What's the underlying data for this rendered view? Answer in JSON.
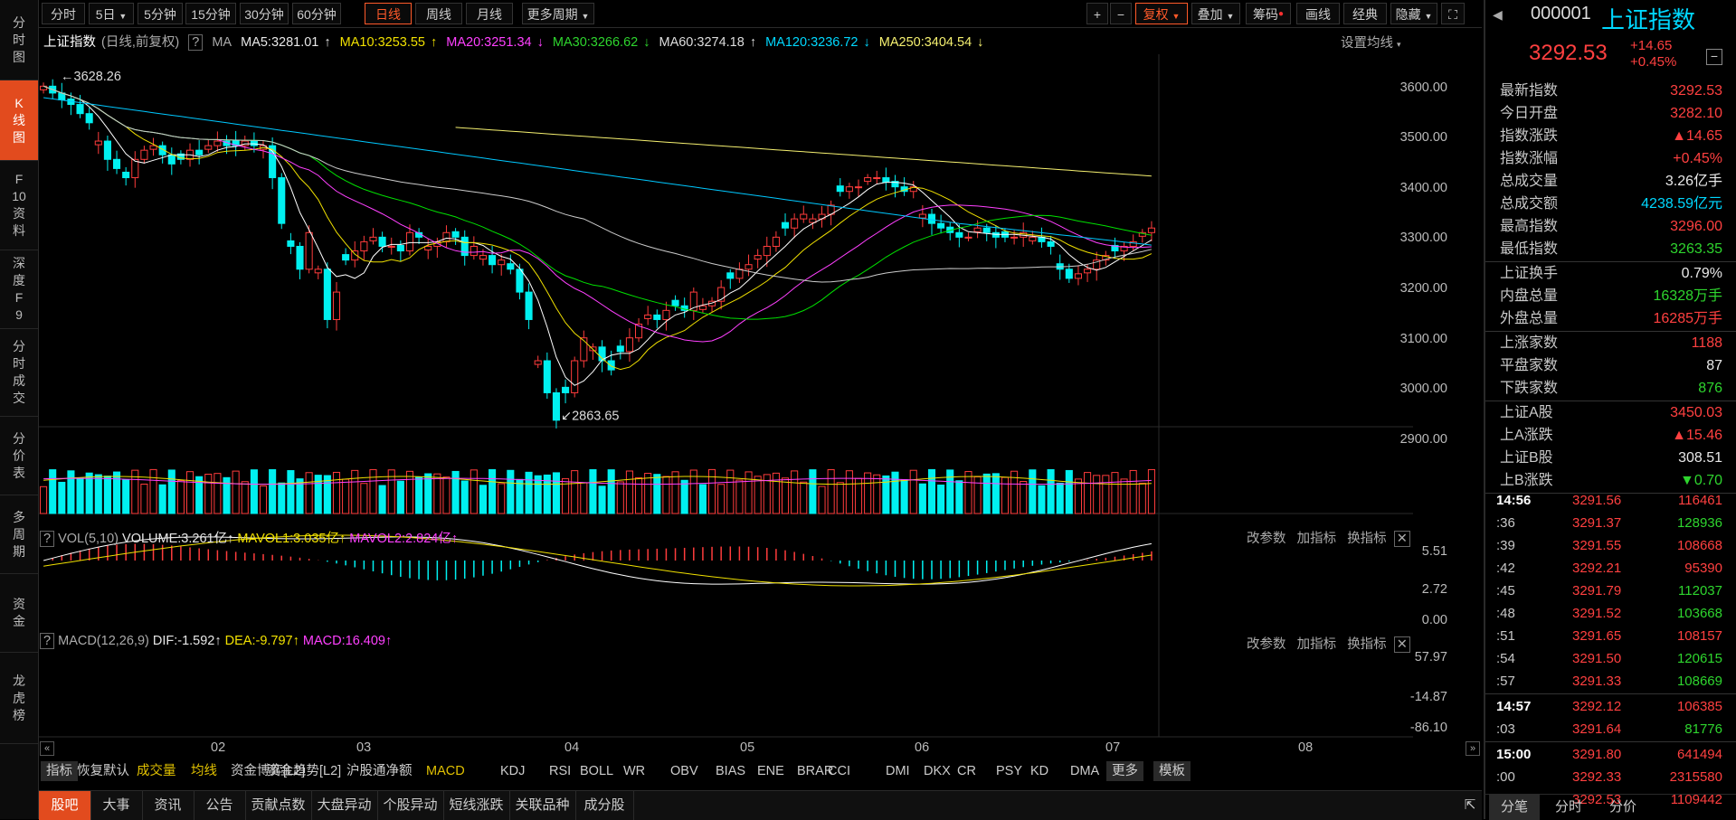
{
  "left_nav": [
    {
      "label": "分时图"
    },
    {
      "label": "K线图",
      "active": true
    },
    {
      "label": "F10资料"
    },
    {
      "label": "深度F9"
    },
    {
      "label": "分时成交"
    },
    {
      "label": "分价表"
    },
    {
      "label": "多周期"
    },
    {
      "label": "资金"
    },
    {
      "label": "龙虎榜"
    }
  ],
  "toolbar": {
    "periods": [
      "分时",
      "5日",
      "5分钟",
      "15分钟",
      "30分钟",
      "60分钟",
      "日线",
      "周线",
      "月线",
      "更多周期"
    ],
    "active_period": "日线",
    "right_buttons": [
      "+",
      "−",
      "复权",
      "叠加",
      "筹码",
      "画线",
      "经典",
      "隐藏"
    ]
  },
  "ma_header": {
    "name": "上证指数",
    "mode": "(日线,前复权)",
    "ma": "MA",
    "ma5": "MA5:3281.01",
    "ma10": "MA10:3253.55",
    "ma20": "MA20:3251.34",
    "ma30": "MA30:3266.62",
    "ma60": "MA60:3274.18",
    "ma120": "MA120:3236.72",
    "ma250": "MA250:3404.54",
    "settings": "设置均线"
  },
  "price_axis": [
    "3600.00",
    "3500.00",
    "3400.00",
    "3300.00",
    "3200.00",
    "3100.00",
    "3000.00",
    "2900.00"
  ],
  "annotations": {
    "high": "3628.26",
    "low": "2863.65"
  },
  "vol_panel": {
    "title": "VOL(5,10)",
    "volume": "VOLUME:3.261亿",
    "mavol1": "MAVOL1:3.035亿",
    "mavol2": "MAVOL2:2.824亿",
    "axis": [
      "5.51",
      "2.72",
      "0.00"
    ],
    "buttons": [
      "改参数",
      "加指标",
      "换指标"
    ]
  },
  "macd_panel": {
    "title": "MACD(12,26,9)",
    "dif": "DIF:-1.592",
    "dea": "DEA:-9.797",
    "macd": "MACD:16.409",
    "axis": [
      "57.97",
      "-14.87",
      "-86.10"
    ],
    "buttons": [
      "改参数",
      "加指标",
      "换指标"
    ]
  },
  "x_axis": [
    "02",
    "03",
    "04",
    "05",
    "06",
    "07",
    "08"
  ],
  "indicator_tabs": [
    "指标",
    "恢复默认",
    "成交量",
    "均线",
    "资金博弈[L2]",
    "资金趋势[L2]",
    "沪股通净额",
    "MACD",
    "KDJ",
    "RSI",
    "BOLL",
    "WR",
    "OBV",
    "BIAS",
    "ENE",
    "BRAR",
    "CCI",
    "DMI",
    "DKX",
    "CR",
    "PSY",
    "KD",
    "DMA",
    "更多",
    "模板"
  ],
  "bottom_tabs": [
    "股吧",
    "大事",
    "资讯",
    "公告",
    "贡献点数",
    "大盘异动",
    "个股异动",
    "短线涨跌",
    "关联品种",
    "成分股"
  ],
  "quote": {
    "code": "000001",
    "name": "上证指数",
    "price": "3292.53",
    "change": "+14.65",
    "change_pct": "+0.45%",
    "rows1": [
      {
        "k": "最新指数",
        "v": "3292.53",
        "c": "red"
      },
      {
        "k": "今日开盘",
        "v": "3282.10",
        "c": "red"
      },
      {
        "k": "指数涨跌",
        "v": "▲14.65",
        "c": "red"
      },
      {
        "k": "指数涨幅",
        "v": "+0.45%",
        "c": "red"
      },
      {
        "k": "总成交量",
        "v": "3.26亿手",
        "c": "white"
      },
      {
        "k": "总成交额",
        "v": "4238.59亿元",
        "c": "cyan"
      },
      {
        "k": "最高指数",
        "v": "3296.00",
        "c": "red"
      },
      {
        "k": "最低指数",
        "v": "3263.35",
        "c": "green"
      }
    ],
    "rows2": [
      {
        "k": "上证换手",
        "v": "0.79%",
        "c": "white"
      },
      {
        "k": "内盘总量",
        "v": "16328万手",
        "c": "green"
      },
      {
        "k": "外盘总量",
        "v": "16285万手",
        "c": "red"
      }
    ],
    "rows3": [
      {
        "k": "上涨家数",
        "v": "1188",
        "c": "red"
      },
      {
        "k": "平盘家数",
        "v": "87",
        "c": "white"
      },
      {
        "k": "下跌家数",
        "v": "876",
        "c": "green"
      }
    ],
    "rows4": [
      {
        "k": "上证A股",
        "v": "3450.03",
        "c": "red"
      },
      {
        "k": "上A涨跌",
        "v": "▲15.46",
        "c": "red"
      },
      {
        "k": "上证B股",
        "v": "308.51",
        "c": "white"
      },
      {
        "k": "上B涨跌",
        "v": "▼0.70",
        "c": "green"
      }
    ],
    "ticks": [
      {
        "t": "14:56",
        "p": "3291.56",
        "v": "116461",
        "c": "red",
        "bold": true
      },
      {
        "t": ":36",
        "p": "3291.37",
        "v": "128936",
        "c": "green"
      },
      {
        "t": ":39",
        "p": "3291.55",
        "v": "108668",
        "c": "red"
      },
      {
        "t": ":42",
        "p": "3292.21",
        "v": "95390",
        "c": "red"
      },
      {
        "t": ":45",
        "p": "3291.79",
        "v": "112037",
        "c": "green"
      },
      {
        "t": ":48",
        "p": "3291.52",
        "v": "103668",
        "c": "green"
      },
      {
        "t": ":51",
        "p": "3291.65",
        "v": "108157",
        "c": "red"
      },
      {
        "t": ":54",
        "p": "3291.50",
        "v": "120615",
        "c": "green"
      },
      {
        "t": ":57",
        "p": "3291.33",
        "v": "108669",
        "c": "green"
      },
      {
        "t": "14:57",
        "p": "3292.12",
        "v": "106385",
        "c": "red",
        "bold": true
      },
      {
        "t": ":03",
        "p": "3291.64",
        "v": "81776",
        "c": "green"
      },
      {
        "t": "15:00",
        "p": "3291.80",
        "v": "641494",
        "c": "red",
        "bold": true
      },
      {
        "t": ":00",
        "p": "3292.33",
        "v": "2315580",
        "c": "red"
      },
      {
        "t": ":00",
        "p": "3292.53",
        "v": "1109442",
        "c": "red"
      }
    ],
    "bottom_tabs": [
      "分笔",
      "分时",
      "分价"
    ]
  },
  "chart_data": {
    "type": "candlestick",
    "title": "上证指数",
    "ylim": [
      2840,
      3650
    ],
    "x_ticks": [
      "02",
      "03",
      "04",
      "05",
      "06",
      "07",
      "08"
    ],
    "high": 3628.26,
    "low": 2863.65,
    "close_points": [
      3600,
      3585,
      3570,
      3560,
      3540,
      3520,
      3480,
      3440,
      3420,
      3400,
      3440,
      3460,
      3470,
      3450,
      3430,
      3440,
      3460,
      3450,
      3470,
      3480,
      3470,
      3470,
      3480,
      3470,
      3470,
      3400,
      3300,
      3250,
      3200,
      3280,
      3200,
      3090,
      3150,
      3220,
      3240,
      3260,
      3270,
      3250,
      3250,
      3240,
      3280,
      3270,
      3250,
      3260,
      3280,
      3270,
      3230,
      3250,
      3230,
      3210,
      3220,
      3200,
      3150,
      3090,
      3000,
      2930,
      2870,
      2930,
      3000,
      3050,
      3030,
      3000,
      2980,
      3020,
      3050,
      3080,
      3100,
      3090,
      3110,
      3120,
      3110,
      3150,
      3120,
      3130,
      3160,
      3180,
      3200,
      3210,
      3230,
      3250,
      3270,
      3290,
      3310,
      3320,
      3310,
      3320,
      3340,
      3370,
      3380,
      3380,
      3400,
      3400,
      3390,
      3380,
      3370,
      3380,
      3320,
      3300,
      3290,
      3280,
      3270,
      3270,
      3290,
      3280,
      3270,
      3270,
      3270,
      3280,
      3270,
      3260,
      3250,
      3200,
      3180,
      3190,
      3200,
      3220,
      3230,
      3240,
      3250,
      3260,
      3280,
      3290
    ],
    "ma5_end": 3281.01,
    "ma250_end": 3404.54
  }
}
